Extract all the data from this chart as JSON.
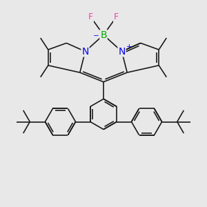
{
  "bg_color": "#e8e8e8",
  "bond_color": "#1a1a1a",
  "bond_lw": 1.2,
  "atom_colors": {
    "B": "#00aa00",
    "N": "#0000ee",
    "F": "#ee44aa",
    "plus": "#0000ee",
    "minus": "#0000ee"
  }
}
